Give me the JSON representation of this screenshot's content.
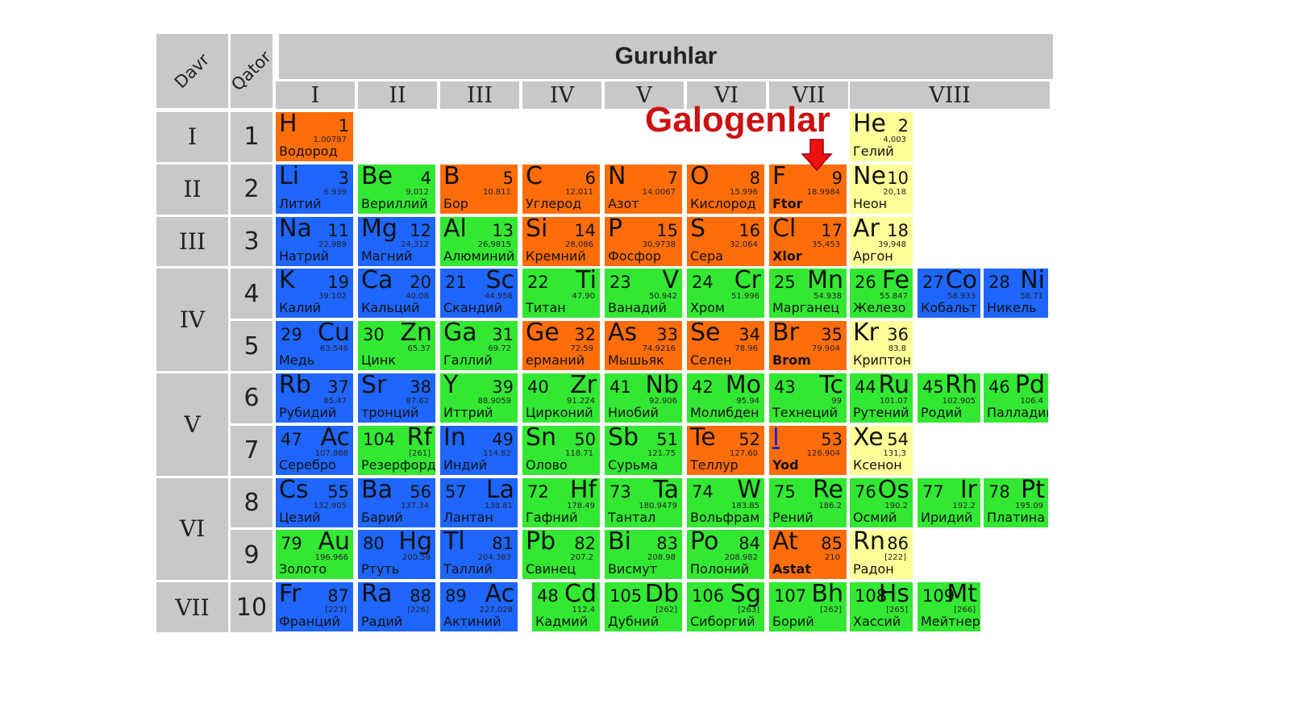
{
  "headers": {
    "davr": "Davr",
    "qator": "Qator",
    "guruhlar": "Guruhlar",
    "groups": [
      "I",
      "II",
      "III",
      "IV",
      "V",
      "VI",
      "VII",
      "VIII"
    ]
  },
  "periods": [
    "I",
    "II",
    "III",
    "IV",
    "V",
    "VI",
    "VII"
  ],
  "rows": [
    "1",
    "2",
    "3",
    "4",
    "5",
    "6",
    "7",
    "8",
    "9",
    "10"
  ],
  "callout": {
    "text": "Galogenlar"
  },
  "colors": {
    "orange": "#ff6d0a",
    "green": "#33e833",
    "blue": "#1f66ff",
    "yellow": "#ffff99",
    "header_gray": "#c8c8c8",
    "callout_red": "#cc1111"
  },
  "elements": [
    {
      "row": 0,
      "col": 0,
      "sym": "H",
      "num": "1",
      "mass": "1.00797",
      "name": "Водород",
      "color": "orange",
      "order": "sfirst"
    },
    {
      "row": 0,
      "col": 7,
      "sym": "He",
      "num": "2",
      "mass": "4,003",
      "name": "Гелий",
      "color": "yellow",
      "order": "sfirst"
    },
    {
      "row": 1,
      "col": 0,
      "sym": "Li",
      "num": "3",
      "mass": "6.939",
      "name": "Литий",
      "color": "blue",
      "order": "sfirst"
    },
    {
      "row": 1,
      "col": 1,
      "sym": "Be",
      "num": "4",
      "mass": "9,012",
      "name": "Вериллий",
      "color": "green",
      "order": "sfirst"
    },
    {
      "row": 1,
      "col": 2,
      "sym": "B",
      "num": "5",
      "mass": "10.811",
      "name": "Бор",
      "color": "orange",
      "order": "sfirst"
    },
    {
      "row": 1,
      "col": 3,
      "sym": "C",
      "num": "6",
      "mass": "12.011",
      "name": "Углерод",
      "color": "orange",
      "order": "sfirst"
    },
    {
      "row": 1,
      "col": 4,
      "sym": "N",
      "num": "7",
      "mass": "14.0067",
      "name": "Азот",
      "color": "orange",
      "order": "sfirst"
    },
    {
      "row": 1,
      "col": 5,
      "sym": "O",
      "num": "8",
      "mass": "15.996",
      "name": "Кислород",
      "color": "orange",
      "order": "sfirst"
    },
    {
      "row": 1,
      "col": 6,
      "sym": "F",
      "num": "9",
      "mass": "18.9984",
      "name": "Ftor",
      "color": "orange",
      "order": "sfirst",
      "bold": true
    },
    {
      "row": 1,
      "col": 7,
      "sym": "Ne",
      "num": "10",
      "mass": "20,18",
      "name": "Неон",
      "color": "yellow",
      "order": "sfirst"
    },
    {
      "row": 2,
      "col": 0,
      "sym": "Na",
      "num": "11",
      "mass": "22,989",
      "name": "Натрий",
      "color": "blue",
      "order": "sfirst"
    },
    {
      "row": 2,
      "col": 1,
      "sym": "Mg",
      "num": "12",
      "mass": "24,312",
      "name": "Магний",
      "color": "blue",
      "order": "sfirst"
    },
    {
      "row": 2,
      "col": 2,
      "sym": "Al",
      "num": "13",
      "mass": "26,9815",
      "name": "Алюминий",
      "color": "green",
      "order": "sfirst"
    },
    {
      "row": 2,
      "col": 3,
      "sym": "Si",
      "num": "14",
      "mass": "28,086",
      "name": "Кремний",
      "color": "orange",
      "order": "sfirst"
    },
    {
      "row": 2,
      "col": 4,
      "sym": "P",
      "num": "15",
      "mass": "30,9738",
      "name": "Фосфор",
      "color": "orange",
      "order": "sfirst"
    },
    {
      "row": 2,
      "col": 5,
      "sym": "S",
      "num": "16",
      "mass": "32,064",
      "name": "Сера",
      "color": "orange",
      "order": "sfirst"
    },
    {
      "row": 2,
      "col": 6,
      "sym": "Cl",
      "num": "17",
      "mass": "35,453",
      "name": "Xlor",
      "color": "orange",
      "order": "sfirst",
      "bold": true
    },
    {
      "row": 2,
      "col": 7,
      "sym": "Ar",
      "num": "18",
      "mass": "39,948",
      "name": "Аргон",
      "color": "yellow",
      "order": "sfirst"
    },
    {
      "row": 3,
      "col": 0,
      "sym": "K",
      "num": "19",
      "mass": "39.102",
      "name": "Калий",
      "color": "blue",
      "order": "sfirst"
    },
    {
      "row": 3,
      "col": 1,
      "sym": "Ca",
      "num": "20",
      "mass": "40.08",
      "name": "Кальций",
      "color": "blue",
      "order": "sfirst"
    },
    {
      "row": 3,
      "col": 2,
      "sym": "Sc",
      "num": "21",
      "mass": "44.956",
      "name": "Скандий",
      "color": "blue",
      "order": "nfirst"
    },
    {
      "row": 3,
      "col": 3,
      "sym": "Ti",
      "num": "22",
      "mass": "47.90",
      "name": "Титан",
      "color": "green",
      "order": "nfirst"
    },
    {
      "row": 3,
      "col": 4,
      "sym": "V",
      "num": "23",
      "mass": "50.942",
      "name": "Ванадий",
      "color": "green",
      "order": "nfirst"
    },
    {
      "row": 3,
      "col": 5,
      "sym": "Cr",
      "num": "24",
      "mass": "51.996",
      "name": "Хром",
      "color": "green",
      "order": "nfirst"
    },
    {
      "row": 3,
      "col": 6,
      "sym": "Mn",
      "num": "25",
      "mass": "54.938",
      "name": "Марганец",
      "color": "green",
      "order": "nfirst"
    },
    {
      "row": 3,
      "col": 7,
      "sym": "Fe",
      "num": "26",
      "mass": "55.847",
      "name": "Железо",
      "color": "green",
      "order": "nfirst"
    },
    {
      "row": 3,
      "col": 8,
      "sym": "Co",
      "num": "27",
      "mass": "58.933",
      "name": "Кобальт",
      "color": "blue",
      "order": "nfirst"
    },
    {
      "row": 3,
      "col": 9,
      "sym": "Ni",
      "num": "28",
      "mass": "58.71",
      "name": "Никель",
      "color": "blue",
      "order": "nfirst"
    },
    {
      "row": 4,
      "col": 0,
      "sym": "Cu",
      "num": "29",
      "mass": "63.546",
      "name": "Медь",
      "color": "blue",
      "order": "nfirst"
    },
    {
      "row": 4,
      "col": 1,
      "sym": "Zn",
      "num": "30",
      "mass": "65.37",
      "name": "Цинк",
      "color": "green",
      "order": "nfirst"
    },
    {
      "row": 4,
      "col": 2,
      "sym": "Ga",
      "num": "31",
      "mass": "69.72",
      "name": "Галлий",
      "color": "green",
      "order": "sfirst"
    },
    {
      "row": 4,
      "col": 3,
      "sym": "Ge",
      "num": "32",
      "mass": "72.59",
      "name": "ерманий",
      "color": "orange",
      "order": "sfirst"
    },
    {
      "row": 4,
      "col": 4,
      "sym": "As",
      "num": "33",
      "mass": "74.9216",
      "name": "Мышьяк",
      "color": "orange",
      "order": "sfirst"
    },
    {
      "row": 4,
      "col": 5,
      "sym": "Se",
      "num": "34",
      "mass": "78.96",
      "name": "Селен",
      "color": "orange",
      "order": "sfirst"
    },
    {
      "row": 4,
      "col": 6,
      "sym": "Br",
      "num": "35",
      "mass": "79.904",
      "name": "Brom",
      "color": "orange",
      "order": "sfirst",
      "bold": true
    },
    {
      "row": 4,
      "col": 7,
      "sym": "Kr",
      "num": "36",
      "mass": "83,8",
      "name": "Криптон",
      "color": "yellow",
      "order": "sfirst"
    },
    {
      "row": 5,
      "col": 0,
      "sym": "Rb",
      "num": "37",
      "mass": "85.47",
      "name": "Рубидий",
      "color": "blue",
      "order": "sfirst"
    },
    {
      "row": 5,
      "col": 1,
      "sym": "Sr",
      "num": "38",
      "mass": "87.62",
      "name": "тронций",
      "color": "blue",
      "order": "sfirst"
    },
    {
      "row": 5,
      "col": 2,
      "sym": "Y",
      "num": "39",
      "mass": "88.9059",
      "name": "Иттрий",
      "color": "green",
      "order": "sfirst"
    },
    {
      "row": 5,
      "col": 3,
      "sym": "Zr",
      "num": "40",
      "mass": "91.224",
      "name": "Цирконий",
      "color": "green",
      "order": "nfirst"
    },
    {
      "row": 5,
      "col": 4,
      "sym": "Nb",
      "num": "41",
      "mass": "92.906",
      "name": "Ниобий",
      "color": "green",
      "order": "nfirst"
    },
    {
      "row": 5,
      "col": 5,
      "sym": "Mo",
      "num": "42",
      "mass": "95.94",
      "name": "Молибден",
      "color": "green",
      "order": "nfirst"
    },
    {
      "row": 5,
      "col": 6,
      "sym": "Tc",
      "num": "43",
      "mass": "99",
      "name": "Технеций",
      "color": "green",
      "order": "nfirst"
    },
    {
      "row": 5,
      "col": 7,
      "sym": "Ru",
      "num": "44",
      "mass": "101.07",
      "name": "Рутений",
      "color": "green",
      "order": "nfirst"
    },
    {
      "row": 5,
      "col": 8,
      "sym": "Rh",
      "num": "45",
      "mass": "102.905",
      "name": "Родий",
      "color": "green",
      "order": "nfirst"
    },
    {
      "row": 5,
      "col": 9,
      "sym": "Pd",
      "num": "46",
      "mass": "106.4",
      "name": "Палладий",
      "color": "green",
      "order": "nfirst"
    },
    {
      "row": 6,
      "col": 0,
      "sym": "Ac",
      "num": "47",
      "mass": "107.868",
      "name": "Серебро",
      "color": "blue",
      "order": "nfirst"
    },
    {
      "row": 6,
      "col": 1,
      "sym": "Rf",
      "num": "104",
      "mass": "[261]",
      "name": "Резерфордий",
      "color": "green",
      "order": "nfirst"
    },
    {
      "row": 6,
      "col": 2,
      "sym": "In",
      "num": "49",
      "mass": "114.82",
      "name": "Индий",
      "color": "blue",
      "order": "sfirst"
    },
    {
      "row": 6,
      "col": 3,
      "sym": "Sn",
      "num": "50",
      "mass": "118.71",
      "name": "Олово",
      "color": "green",
      "order": "sfirst"
    },
    {
      "row": 6,
      "col": 4,
      "sym": "Sb",
      "num": "51",
      "mass": "121.75",
      "name": "Сурьма",
      "color": "green",
      "order": "sfirst"
    },
    {
      "row": 6,
      "col": 5,
      "sym": "Te",
      "num": "52",
      "mass": "127.60",
      "name": "Теллур",
      "color": "orange",
      "order": "sfirst"
    },
    {
      "row": 6,
      "col": 6,
      "sym": "I",
      "num": "53",
      "mass": "126.904",
      "name": "Yod",
      "color": "orange",
      "order": "sfirst",
      "bold": true,
      "link": true
    },
    {
      "row": 6,
      "col": 7,
      "sym": "Xe",
      "num": "54",
      "mass": "131,3",
      "name": "Ксенон",
      "color": "yellow",
      "order": "sfirst"
    },
    {
      "row": 7,
      "col": 0,
      "sym": "Cs",
      "num": "55",
      "mass": "132.905",
      "name": "Цезий",
      "color": "blue",
      "order": "sfirst"
    },
    {
      "row": 7,
      "col": 1,
      "sym": "Ba",
      "num": "56",
      "mass": "137.34",
      "name": "Барий",
      "color": "blue",
      "order": "sfirst"
    },
    {
      "row": 7,
      "col": 2,
      "sym": "La",
      "num": "57",
      "mass": "138.81",
      "name": "Лантан",
      "color": "blue",
      "order": "nfirst"
    },
    {
      "row": 7,
      "col": 3,
      "sym": "Hf",
      "num": "72",
      "mass": "178.49",
      "name": "Гафний",
      "color": "green",
      "order": "nfirst"
    },
    {
      "row": 7,
      "col": 4,
      "sym": "Ta",
      "num": "73",
      "mass": "180.9479",
      "name": "Тантал",
      "color": "green",
      "order": "nfirst"
    },
    {
      "row": 7,
      "col": 5,
      "sym": "W",
      "num": "74",
      "mass": "183.85",
      "name": "Вольфрам",
      "color": "green",
      "order": "nfirst"
    },
    {
      "row": 7,
      "col": 6,
      "sym": "Re",
      "num": "75",
      "mass": "186.2",
      "name": "Рений",
      "color": "green",
      "order": "nfirst"
    },
    {
      "row": 7,
      "col": 7,
      "sym": "Os",
      "num": "76",
      "mass": "190.2",
      "name": "Осмий",
      "color": "green",
      "order": "nfirst"
    },
    {
      "row": 7,
      "col": 8,
      "sym": "Ir",
      "num": "77",
      "mass": "192.2",
      "name": "Иридий",
      "color": "green",
      "order": "nfirst"
    },
    {
      "row": 7,
      "col": 9,
      "sym": "Pt",
      "num": "78",
      "mass": "195.09",
      "name": "Платина",
      "color": "green",
      "order": "nfirst"
    },
    {
      "row": 8,
      "col": 0,
      "sym": "Au",
      "num": "79",
      "mass": "196.966",
      "name": "Золото",
      "color": "green",
      "order": "nfirst"
    },
    {
      "row": 8,
      "col": 1,
      "sym": "Hg",
      "num": "80",
      "mass": "200.59",
      "name": "Ртуть",
      "color": "blue",
      "order": "nfirst"
    },
    {
      "row": 8,
      "col": 2,
      "sym": "Tl",
      "num": "81",
      "mass": "204.383",
      "name": "Таллий",
      "color": "blue",
      "order": "sfirst"
    },
    {
      "row": 8,
      "col": 3,
      "sym": "Pb",
      "num": "82",
      "mass": "207.2",
      "name": "Свинец",
      "color": "green",
      "order": "sfirst"
    },
    {
      "row": 8,
      "col": 4,
      "sym": "Bi",
      "num": "83",
      "mass": "208.98",
      "name": "Висмут",
      "color": "green",
      "order": "sfirst"
    },
    {
      "row": 8,
      "col": 5,
      "sym": "Po",
      "num": "84",
      "mass": "208.982",
      "name": "Полоний",
      "color": "green",
      "order": "sfirst"
    },
    {
      "row": 8,
      "col": 6,
      "sym": "At",
      "num": "85",
      "mass": "210",
      "name": "Astat",
      "color": "orange",
      "order": "sfirst",
      "bold": true
    },
    {
      "row": 8,
      "col": 7,
      "sym": "Rn",
      "num": "86",
      "mass": "[222]",
      "name": "Радон",
      "color": "yellow",
      "order": "sfirst"
    },
    {
      "row": 9,
      "col": 0,
      "sym": "Fr",
      "num": "87",
      "mass": "[223]",
      "name": "Франций",
      "color": "blue",
      "order": "sfirst"
    },
    {
      "row": 9,
      "col": 1,
      "sym": "Ra",
      "num": "88",
      "mass": "[226]",
      "name": "Радий",
      "color": "blue",
      "order": "sfirst"
    },
    {
      "row": 9,
      "col": 2,
      "sym": "Ac",
      "num": "89",
      "mass": "227.028",
      "name": "Актиний",
      "color": "blue",
      "order": "nfirst"
    },
    {
      "row": 9,
      "col": 3,
      "sym": "Cd",
      "num": "48",
      "mass": "112.4",
      "name": "Кадмий",
      "color": "green",
      "order": "nfirst"
    },
    {
      "row": 9,
      "col": 4,
      "sym": "Db",
      "num": "105",
      "mass": "[262]",
      "name": "Дубний",
      "color": "green",
      "order": "nfirst"
    },
    {
      "row": 9,
      "col": 5,
      "sym": "Sg",
      "num": "106",
      "mass": "[263]",
      "name": "Сиборгий",
      "color": "green",
      "order": "nfirst"
    },
    {
      "row": 9,
      "col": 6,
      "sym": "Bh",
      "num": "107",
      "mass": "[262]",
      "name": "Борий",
      "color": "green",
      "order": "nfirst"
    },
    {
      "row": 9,
      "col": 7,
      "sym": "Hs",
      "num": "108",
      "mass": "[265]",
      "name": "Хассий",
      "color": "green",
      "order": "nfirst"
    },
    {
      "row": 9,
      "col": 8,
      "sym": "Mt",
      "num": "109",
      "mass": "[266]",
      "name": "Мейтнерий",
      "color": "green",
      "order": "nfirst"
    }
  ]
}
